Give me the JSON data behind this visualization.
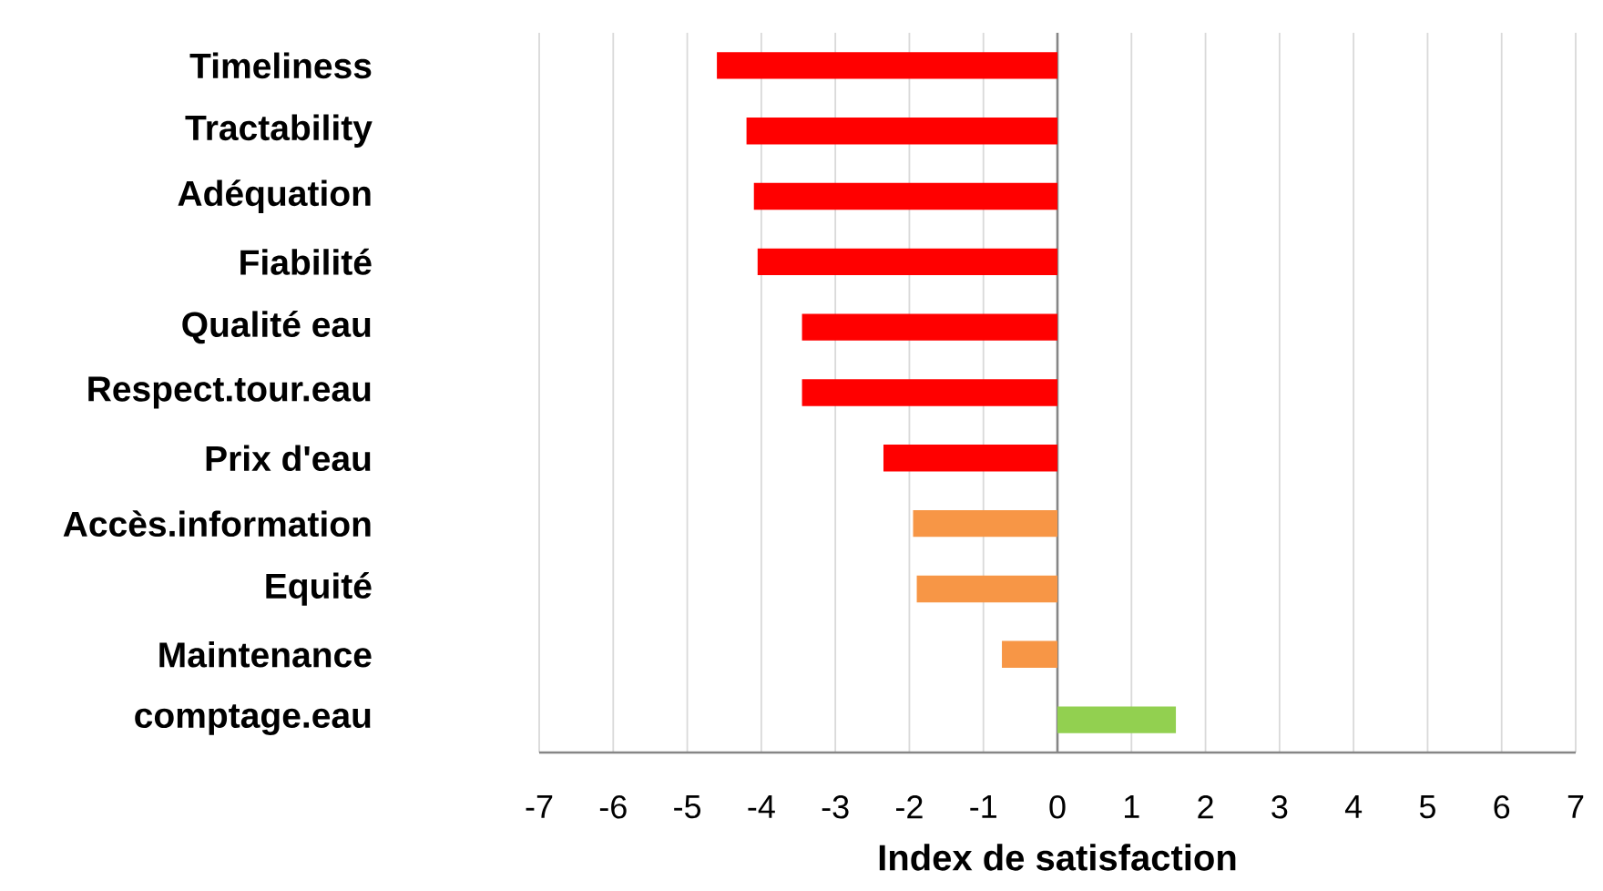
{
  "chart_data": {
    "type": "bar",
    "orientation": "horizontal",
    "xlabel": "Index de satisfaction",
    "categories": [
      "Timeliness",
      "Tractability",
      "Adéquation",
      "Fiabilité",
      "Qualité eau",
      "Respect.tour.eau",
      "Prix d'eau",
      "Accès.information",
      "Equité",
      "Maintenance",
      "comptage.eau"
    ],
    "values": [
      -4.6,
      -4.2,
      -4.1,
      -4.05,
      -3.45,
      -3.45,
      -2.35,
      -1.95,
      -1.9,
      -0.75,
      1.6
    ],
    "colors": [
      "#ff0000",
      "#ff0000",
      "#ff0000",
      "#ff0000",
      "#ff0000",
      "#ff0000",
      "#ff0000",
      "#f79646",
      "#f79646",
      "#f79646",
      "#92d050"
    ],
    "xlim": [
      -7,
      7
    ],
    "xticks": [
      -7,
      -6,
      -5,
      -4,
      -3,
      -2,
      -1,
      0,
      1,
      2,
      3,
      4,
      5,
      6,
      7
    ],
    "grid": "x"
  }
}
